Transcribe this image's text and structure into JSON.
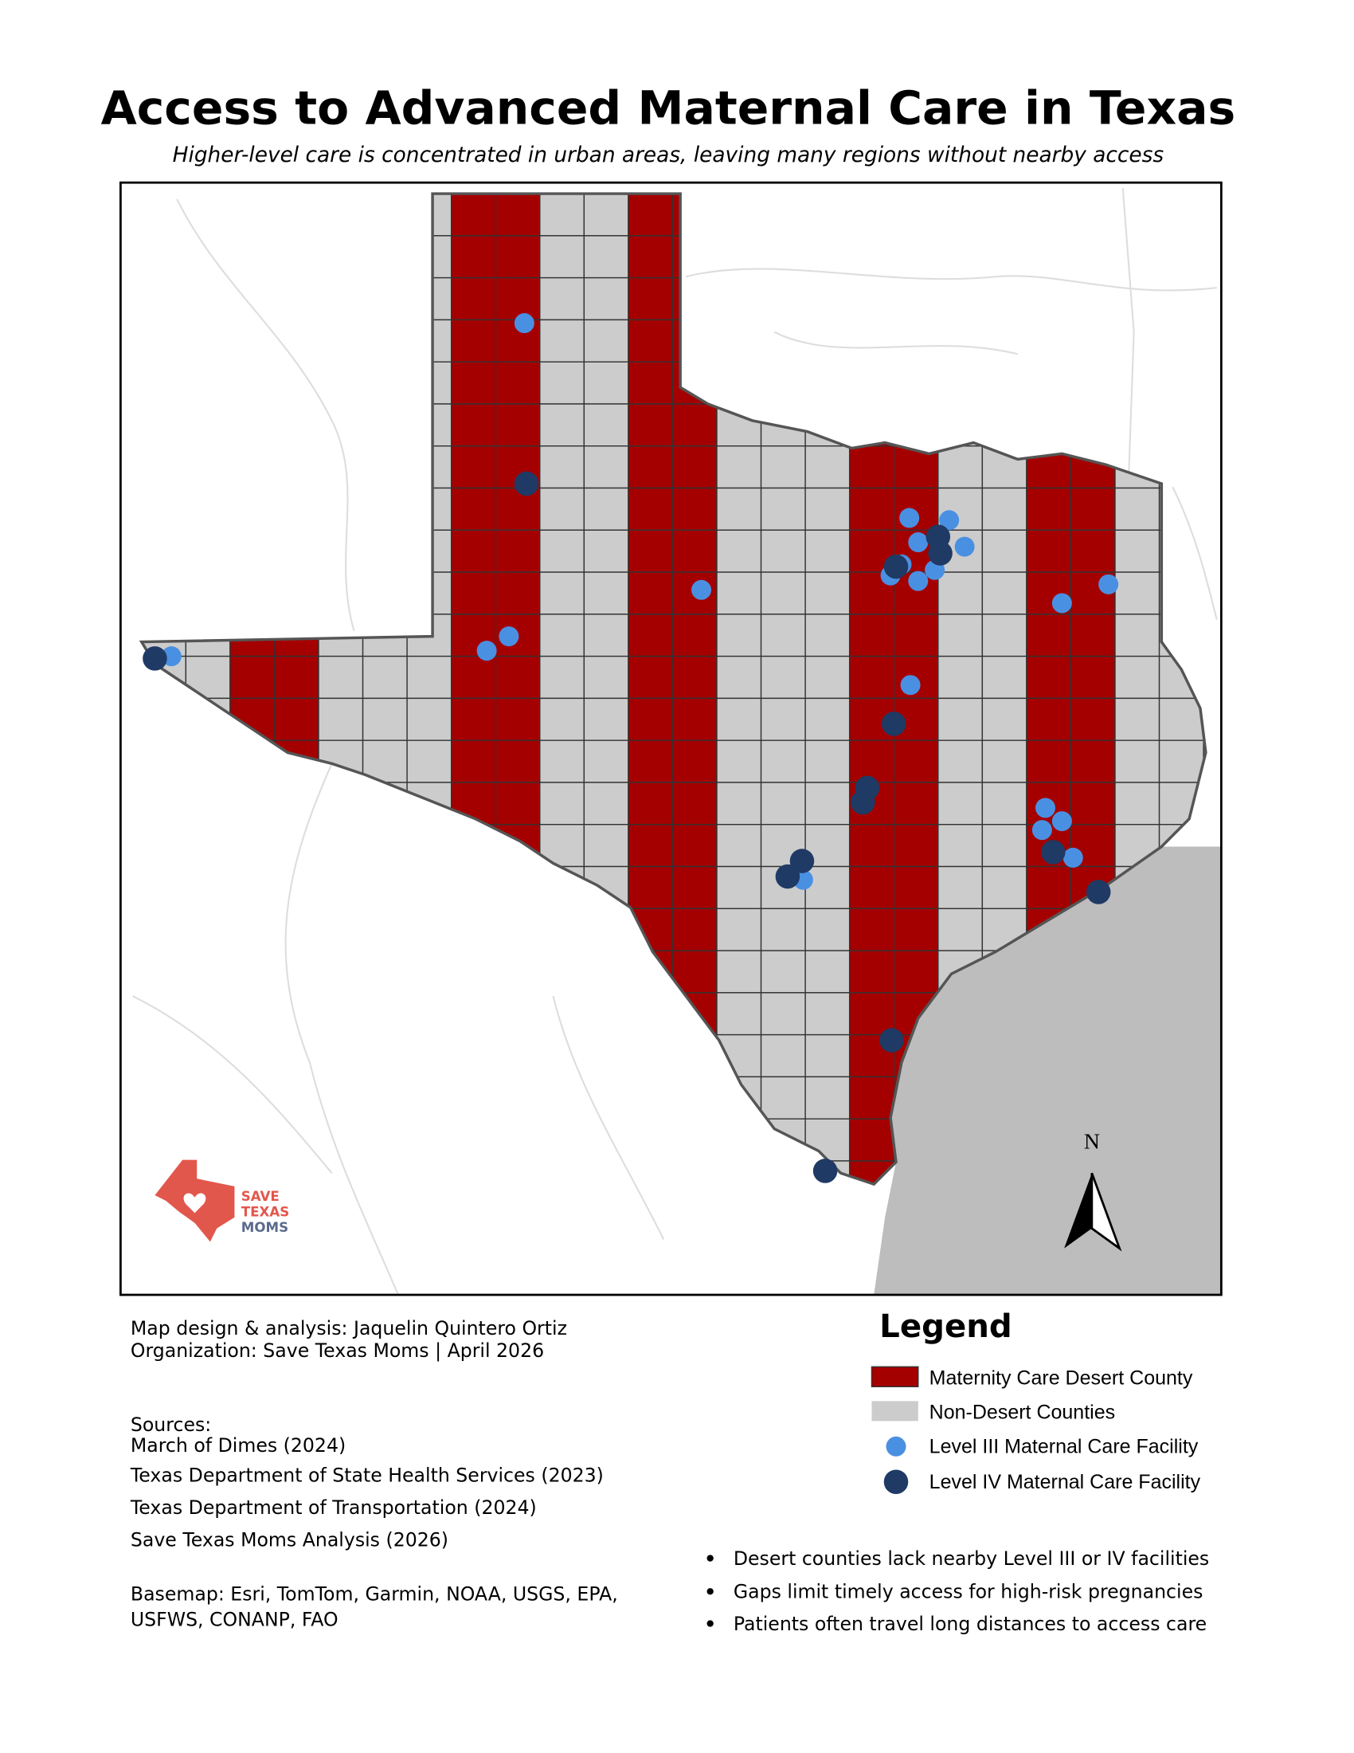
{
  "header": {
    "title": "Access to Advanced Maternal Care in Texas",
    "subtitle": "Higher-level care is concentrated in urban areas, leaving many regions without nearby access"
  },
  "map": {
    "north_label": "N",
    "logo": [
      "SAVE",
      "TEXAS",
      "MOMS"
    ]
  },
  "credits": [
    "Map design & analysis: Jaquelin Quintero Ortiz",
    "Organization: Save Texas Moms | April 2026"
  ],
  "sources": {
    "heading": "Sources:",
    "items": [
      "March of Dimes (2024)",
      "Texas Department of State Health Services (2023)",
      "Texas Department of Transportation (2024)",
      "Save Texas Moms Analysis (2026)"
    ],
    "basemap": [
      "Basemap: Esri, TomTom, Garmin, NOAA, USGS, EPA,",
      "USFWS, CONANP, FAO"
    ]
  },
  "legend": {
    "title": "Legend",
    "items": [
      "Maternity Care Desert County",
      "Non-Desert Counties",
      "Level III Maternal Care Facility",
      "Level IV Maternal Care Facility"
    ]
  },
  "notes": [
    "Desert counties lack nearby Level III or IV facilities",
    "Gaps limit timely access for high-risk pregnancies",
    "Patients often travel long distances to access care"
  ]
}
